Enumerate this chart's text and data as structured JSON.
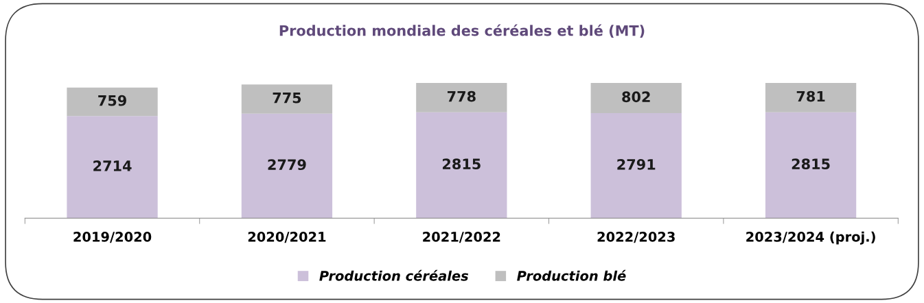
{
  "chart_data": {
    "type": "bar",
    "title": "Production mondiale des céréales et blé (MT)",
    "categories": [
      "2019/2020",
      "2020/2021",
      "2021/2022",
      "2022/2023",
      "2023/2024 (proj.)"
    ],
    "stacked": true,
    "data_labels": true,
    "legend": "bottom",
    "grid": false,
    "series": [
      {
        "name": "Production céréales",
        "color": "#ccc0da",
        "values": [
          2714,
          2779,
          2815,
          2791,
          2815
        ]
      },
      {
        "name": "Production blé",
        "color": "#bfbfbf",
        "values": [
          759,
          775,
          778,
          802,
          781
        ]
      }
    ]
  }
}
